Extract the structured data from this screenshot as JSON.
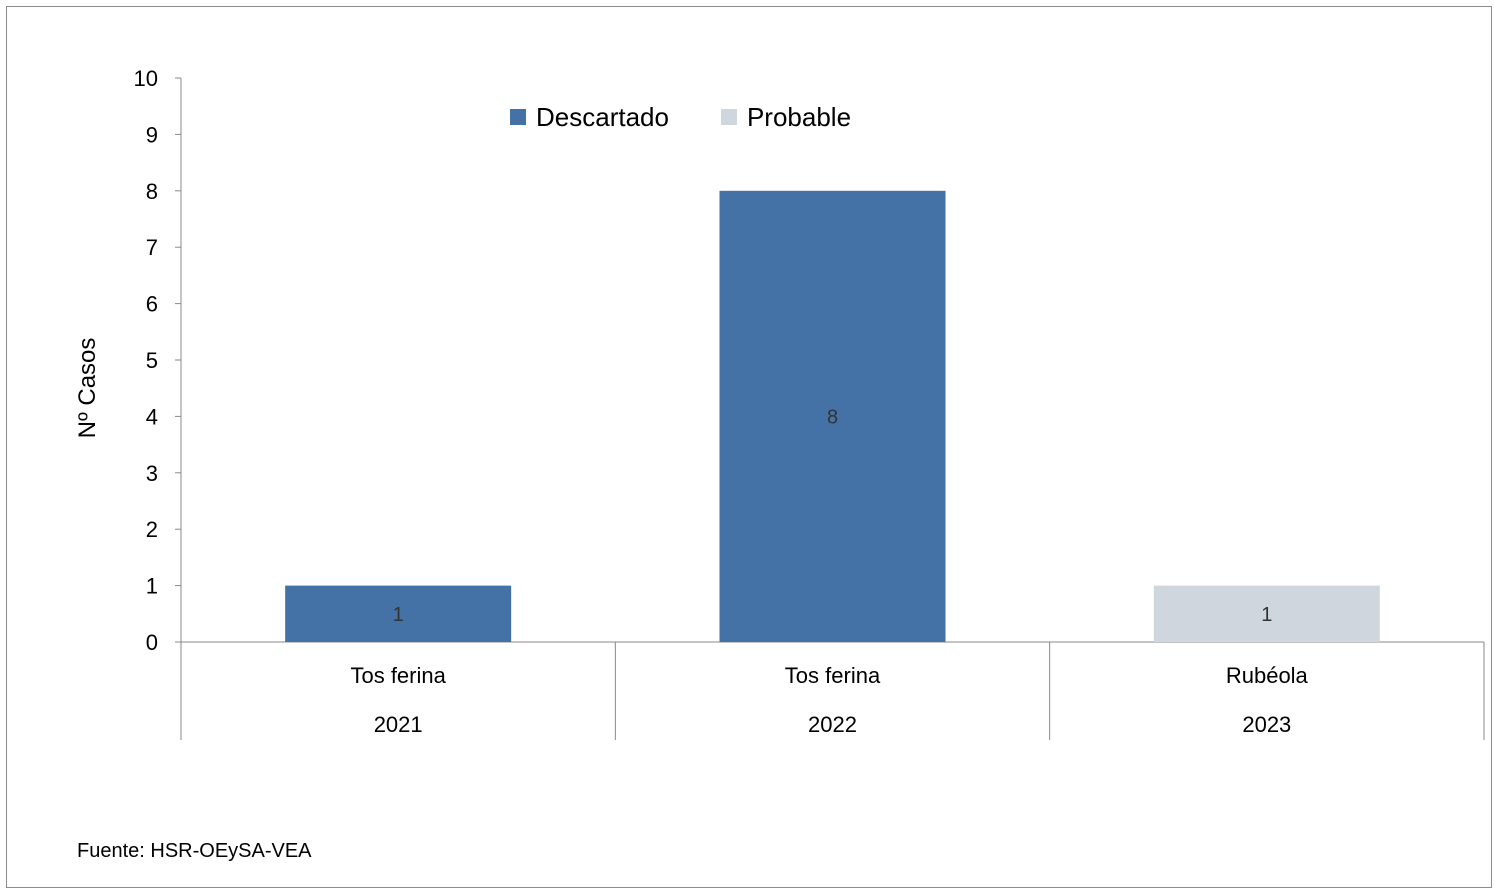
{
  "chart_data": {
    "type": "bar",
    "title": "",
    "ylabel": "Nº Casos",
    "xlabel": "",
    "ylim": [
      0,
      10
    ],
    "yticks": [
      0,
      1,
      2,
      3,
      4,
      5,
      6,
      7,
      8,
      9,
      10
    ],
    "grid": false,
    "legend_position": "top-center",
    "categories": [
      {
        "label": "Tos ferina",
        "group": "2021"
      },
      {
        "label": "Tos ferina",
        "group": "2022"
      },
      {
        "label": "Rubéola",
        "group": "2023"
      }
    ],
    "series": [
      {
        "name": "Descartado",
        "color": "#4472a6",
        "values": [
          1,
          8,
          0
        ]
      },
      {
        "name": "Probable",
        "color": "#d0d6de",
        "values": [
          0,
          0,
          1
        ]
      }
    ],
    "data_labels": [
      "1",
      "8",
      "1"
    ]
  },
  "source": "Fuente: HSR-OEySA-VEA"
}
